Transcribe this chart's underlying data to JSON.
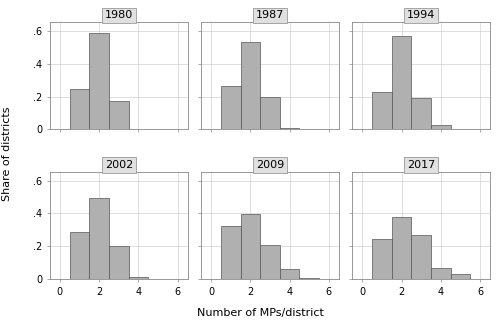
{
  "years": [
    "1980",
    "1987",
    "1994",
    "2002",
    "2009",
    "2017"
  ],
  "bar_values": {
    "1980": [
      0.0,
      0.245,
      0.585,
      0.17,
      0.0,
      0.0
    ],
    "1987": [
      0.0,
      0.265,
      0.53,
      0.195,
      0.01,
      0.0
    ],
    "1994": [
      0.0,
      0.23,
      0.565,
      0.19,
      0.025,
      0.0
    ],
    "2002": [
      0.0,
      0.29,
      0.495,
      0.205,
      0.015,
      0.0
    ],
    "2009": [
      0.0,
      0.325,
      0.395,
      0.21,
      0.065,
      0.01
    ],
    "2017": [
      0.0,
      0.245,
      0.38,
      0.27,
      0.07,
      0.035
    ]
  },
  "x_positions": [
    0,
    1,
    2,
    3,
    4,
    5
  ],
  "bar_width": 1.0,
  "bar_color": "#b0b0b0",
  "bar_edgecolor": "#555555",
  "xlabel": "Number of MPs/district",
  "ylabel": "Share of districts",
  "xlim": [
    -0.5,
    6.5
  ],
  "ylim": [
    0,
    0.65
  ],
  "yticks": [
    0,
    0.2,
    0.4,
    0.6
  ],
  "ytick_labels": [
    "0",
    ".2",
    ".4",
    ".6"
  ],
  "xticks": [
    0,
    2,
    4,
    6
  ],
  "xtick_labels": [
    "0",
    "2",
    "4",
    "6"
  ],
  "grid_color": "#d0d0d0",
  "background_color": "#ffffff",
  "panel_label_bg": "#e0e0e0",
  "panel_label_edgecolor": "#999999",
  "nrows": 2,
  "ncols": 3,
  "figsize": [
    5.0,
    3.21
  ],
  "dpi": 100,
  "title_fontsize": 8,
  "axis_fontsize": 8,
  "tick_fontsize": 7
}
